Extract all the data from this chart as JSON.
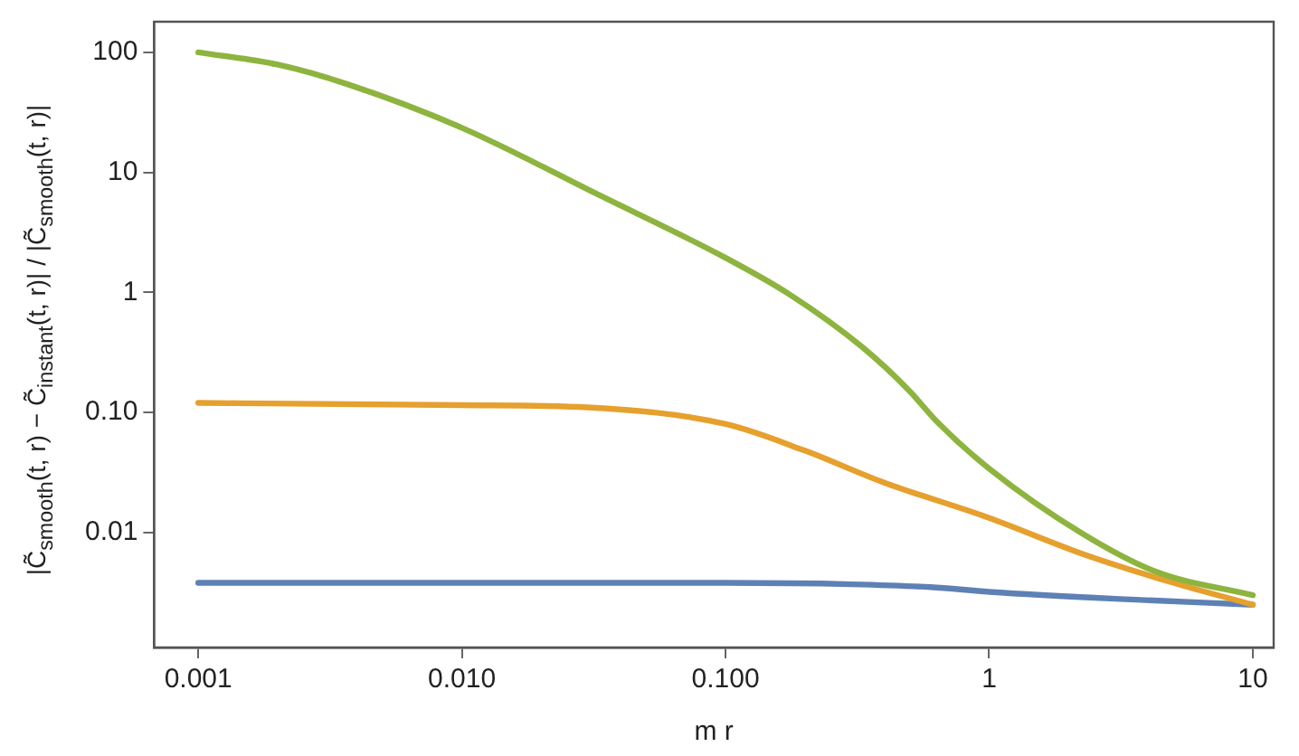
{
  "chart_data": {
    "type": "line",
    "xlabel": "m r",
    "ylabel": "|C̃$_{smooth}$(t, r) − C̃$_{instant}$(t, r)| / |C̃$_{smooth}$(t, r)|",
    "log": "xy",
    "grid": false,
    "legend": false,
    "marker": "none",
    "line_style": "solid",
    "xlim": [
      0.00068,
      12
    ],
    "ylim": [
      0.0011,
      180
    ],
    "xticks": [
      0.001,
      {
        "value": 0.01,
        "label": "0.010"
      },
      {
        "value": 0.1,
        "label": "0.100"
      },
      1,
      10
    ],
    "yticks": [
      0.01,
      {
        "value": 0.1,
        "label": "0.10"
      },
      1,
      10,
      100
    ],
    "series": [
      {
        "color": "#8db43e",
        "x": [
          0.001,
          0.002,
          0.0037,
          0.01,
          0.033,
          0.1,
          0.175,
          0.33,
          0.5,
          0.63,
          1,
          2.27,
          4.3,
          10
        ],
        "values": [
          100,
          79,
          54,
          23.5,
          6.5,
          1.94,
          0.96,
          0.35,
          0.15,
          0.085,
          0.034,
          0.0097,
          0.0047,
          0.003
        ]
      },
      {
        "color": "#e6a02e",
        "x": [
          0.001,
          0.01,
          0.03,
          0.1,
          0.2,
          0.4,
          1,
          2.27,
          5,
          10
        ],
        "values": [
          0.12,
          0.115,
          0.11,
          0.08,
          0.048,
          0.026,
          0.0132,
          0.0066,
          0.0038,
          0.0025
        ]
      },
      {
        "color": "#5e81b5",
        "x": [
          0.001,
          0.1,
          0.3,
          0.6,
          1,
          3,
          10
        ],
        "values": [
          0.0038,
          0.0038,
          0.0037,
          0.0035,
          0.0032,
          0.0028,
          0.0025
        ]
      }
    ]
  }
}
